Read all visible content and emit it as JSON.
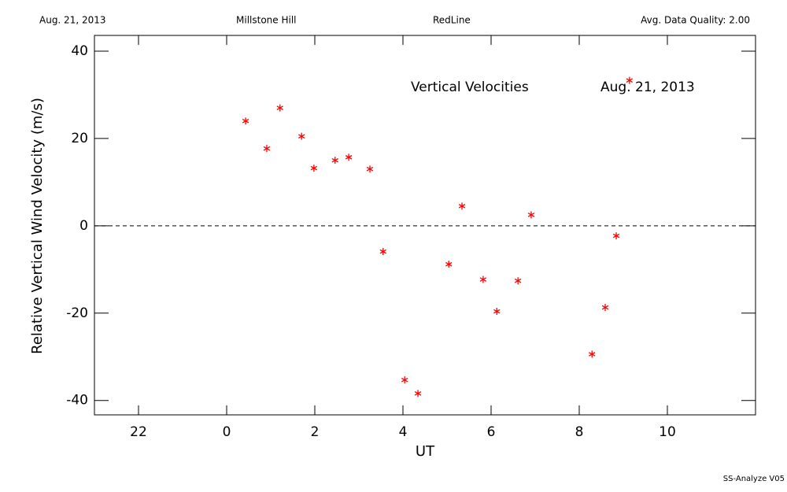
{
  "chart_data": {
    "type": "scatter",
    "header": [
      "Aug. 21, 2013",
      "Millstone Hill",
      "RedLine",
      "Avg. Data Quality: 2.00"
    ],
    "annotations": [
      "Vertical Velocities",
      "Aug. 21, 2013"
    ],
    "footer": "SS-Analyze V05",
    "xlabel": "UT",
    "ylabel": "Relative Vertical Wind Velocity (m/s)",
    "color": "#ff0000",
    "x": [
      0.43,
      0.91,
      1.21,
      1.7,
      1.98,
      2.46,
      2.77,
      3.25,
      3.55,
      4.04,
      4.34,
      5.04,
      5.34,
      5.82,
      6.13,
      6.61,
      6.91,
      8.29,
      8.59,
      8.84,
      9.14
    ],
    "values": [
      24.0,
      17.7,
      27.0,
      20.5,
      13.2,
      15.0,
      15.7,
      13.0,
      -5.9,
      -35.3,
      -38.4,
      -8.8,
      4.5,
      -12.3,
      -19.6,
      -12.6,
      2.5,
      -29.4,
      -18.7,
      -2.3,
      33.3
    ],
    "xlim": [
      -3,
      12
    ],
    "xticks": [
      {
        "value": -2,
        "label": "22"
      },
      0,
      2,
      4,
      6,
      8,
      10
    ],
    "ylim": [
      -43.3,
      43.6
    ],
    "yticks": [
      -40,
      -20,
      0,
      20,
      40
    ],
    "reference_line": 0
  }
}
